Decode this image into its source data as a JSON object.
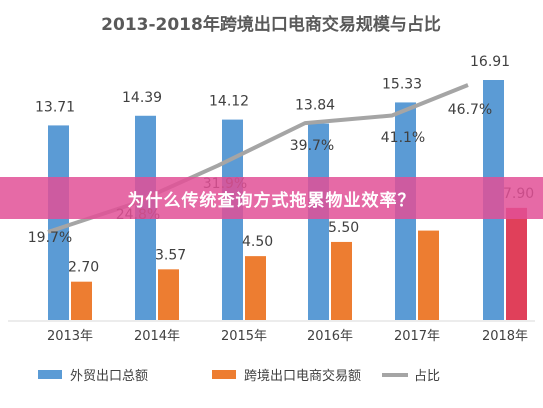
{
  "chart_data": {
    "type": "bar",
    "title": "2013-2018年跨境出口电商交易规模与占比",
    "categories": [
      "2013年",
      "2014年",
      "2015年",
      "2016年",
      "2017年",
      "2018年"
    ],
    "series": [
      {
        "name": "外贸出口总额",
        "type": "bar",
        "color": "#5b9bd5",
        "values": [
          13.71,
          14.39,
          14.12,
          13.84,
          15.33,
          16.91
        ]
      },
      {
        "name": "跨境出口电商交易额",
        "type": "bar",
        "color": "#ed7d31",
        "values": [
          2.7,
          3.57,
          4.5,
          5.5,
          6.3,
          7.9
        ]
      },
      {
        "name": "占比",
        "type": "line",
        "color": "#a5a5a5",
        "values": [
          19.7,
          24.8,
          31.9,
          39.7,
          41.1,
          46.7
        ]
      }
    ],
    "value_labels": {
      "外贸出口总额": [
        "13.71",
        "14.39",
        "14.12",
        "13.84",
        "15.33",
        "16.91"
      ],
      "跨境出口电商交易额": [
        "2.70",
        "3.57",
        "4.50",
        "5.50",
        "",
        "7.90"
      ],
      "占比": [
        "19.7%",
        "24.8%",
        "31.9%",
        "39.7%",
        "41.1%",
        "46.7%"
      ]
    },
    "ylim": [
      0,
      18
    ],
    "ratio_ylim": [
      0,
      55
    ],
    "grid": false,
    "legend_position": "bottom"
  },
  "banner": {
    "text": "为什么传统查询方式拖累物业效率？",
    "color": "#e25096"
  }
}
